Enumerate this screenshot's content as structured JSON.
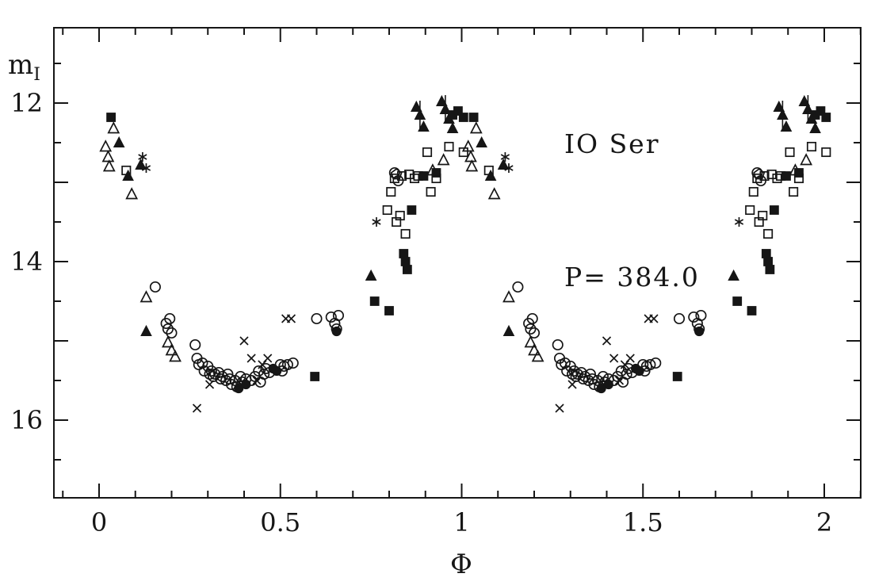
{
  "chart_data": {
    "type": "scatter",
    "title": "IO Ser",
    "subtitle": "P= 384.0",
    "xlabel": "Φ",
    "ylabel_main": "m",
    "ylabel_sub": "I",
    "x_range": [
      -0.125,
      2.102
    ],
    "y_range_mag": [
      11.05,
      16.98
    ],
    "y_inverted": true,
    "x_major_ticks": [
      0,
      0.5,
      1,
      1.5,
      2
    ],
    "x_tick_labels": [
      "0",
      "0.5",
      "1",
      "1.5",
      "2"
    ],
    "x_minor_step": 0.1,
    "y_major_step": 1,
    "y_minor_step": 0.5,
    "y_labeled_ticks": [
      12,
      14,
      16
    ],
    "y_tick_labels": [
      "12",
      "14",
      "16"
    ],
    "grid": false,
    "legend": "none",
    "phase_duplicated": true,
    "marker_color": "#161616",
    "series": [
      {
        "name": "open-circle",
        "marker": "circle-open",
        "points": [
          [
            0.155,
            14.32
          ],
          [
            0.185,
            14.78
          ],
          [
            0.19,
            14.85
          ],
          [
            0.195,
            14.72
          ],
          [
            0.2,
            14.9
          ],
          [
            0.265,
            15.05
          ],
          [
            0.27,
            15.22
          ],
          [
            0.275,
            15.3
          ],
          [
            0.285,
            15.28
          ],
          [
            0.29,
            15.38
          ],
          [
            0.3,
            15.32
          ],
          [
            0.305,
            15.42
          ],
          [
            0.31,
            15.38
          ],
          [
            0.315,
            15.45
          ],
          [
            0.32,
            15.42
          ],
          [
            0.33,
            15.4
          ],
          [
            0.335,
            15.48
          ],
          [
            0.34,
            15.45
          ],
          [
            0.35,
            15.5
          ],
          [
            0.355,
            15.42
          ],
          [
            0.36,
            15.48
          ],
          [
            0.365,
            15.55
          ],
          [
            0.375,
            15.5
          ],
          [
            0.38,
            15.58
          ],
          [
            0.39,
            15.45
          ],
          [
            0.395,
            15.52
          ],
          [
            0.405,
            15.48
          ],
          [
            0.42,
            15.5
          ],
          [
            0.43,
            15.45
          ],
          [
            0.44,
            15.38
          ],
          [
            0.445,
            15.52
          ],
          [
            0.455,
            15.42
          ],
          [
            0.46,
            15.35
          ],
          [
            0.47,
            15.4
          ],
          [
            0.5,
            15.3
          ],
          [
            0.505,
            15.38
          ],
          [
            0.51,
            15.32
          ],
          [
            0.52,
            15.3
          ],
          [
            0.535,
            15.28
          ],
          [
            0.6,
            14.72
          ],
          [
            0.64,
            14.7
          ],
          [
            0.65,
            14.78
          ],
          [
            0.655,
            14.85
          ],
          [
            0.66,
            14.68
          ],
          [
            0.815,
            12.88
          ],
          [
            0.825,
            12.98
          ]
        ]
      },
      {
        "name": "filled-circle",
        "marker": "circle-filled",
        "points": [
          [
            0.385,
            15.6
          ],
          [
            0.405,
            15.55
          ],
          [
            0.48,
            15.35
          ],
          [
            0.49,
            15.38
          ],
          [
            0.655,
            14.88
          ]
        ]
      },
      {
        "name": "cross",
        "marker": "cross",
        "points": [
          [
            0.27,
            15.85
          ],
          [
            0.305,
            15.55
          ],
          [
            0.4,
            15.0
          ],
          [
            0.42,
            15.22
          ],
          [
            0.435,
            15.5
          ],
          [
            0.45,
            15.3
          ],
          [
            0.465,
            15.22
          ],
          [
            0.515,
            14.72
          ],
          [
            0.53,
            14.72
          ]
        ]
      },
      {
        "name": "asterisk",
        "marker": "asterisk",
        "points": [
          [
            0.12,
            12.68
          ],
          [
            0.13,
            12.82
          ],
          [
            0.765,
            13.5
          ]
        ]
      },
      {
        "name": "open-triangle",
        "marker": "triangle-open",
        "points": [
          [
            0.018,
            12.55
          ],
          [
            0.025,
            12.68
          ],
          [
            0.028,
            12.8
          ],
          [
            0.04,
            12.32
          ],
          [
            0.09,
            13.15
          ],
          [
            0.13,
            14.45
          ],
          [
            0.19,
            15.02
          ],
          [
            0.2,
            15.12
          ],
          [
            0.21,
            15.2
          ],
          [
            0.92,
            12.85
          ],
          [
            0.95,
            12.72
          ]
        ]
      },
      {
        "name": "filled-triangle",
        "marker": "triangle-filled",
        "points": [
          [
            0.055,
            12.5
          ],
          [
            0.08,
            12.92
          ],
          [
            0.115,
            12.78
          ],
          [
            0.13,
            14.88
          ],
          [
            0.75,
            14.18
          ],
          [
            0.875,
            12.05
          ],
          [
            0.885,
            12.15,
            0.18
          ],
          [
            0.895,
            12.3
          ],
          [
            0.945,
            11.98
          ],
          [
            0.955,
            12.08,
            0.18
          ],
          [
            0.965,
            12.2
          ],
          [
            0.975,
            12.32
          ]
        ]
      },
      {
        "name": "open-square",
        "marker": "square-open",
        "points": [
          [
            0.075,
            12.85
          ],
          [
            0.795,
            13.35
          ],
          [
            0.805,
            13.12
          ],
          [
            0.815,
            12.95
          ],
          [
            0.82,
            13.5
          ],
          [
            0.83,
            13.42
          ],
          [
            0.835,
            12.92
          ],
          [
            0.845,
            13.65
          ],
          [
            0.855,
            12.9
          ],
          [
            0.87,
            12.95
          ],
          [
            0.88,
            12.92
          ],
          [
            0.905,
            12.62
          ],
          [
            0.915,
            13.12
          ],
          [
            0.93,
            12.95
          ],
          [
            0.965,
            12.55
          ],
          [
            1.005,
            12.62
          ]
        ]
      },
      {
        "name": "filled-square",
        "marker": "square-filled",
        "points": [
          [
            0.033,
            12.18
          ],
          [
            0.595,
            15.45
          ],
          [
            0.76,
            14.5
          ],
          [
            0.8,
            14.62
          ],
          [
            0.84,
            13.9
          ],
          [
            0.845,
            14.0
          ],
          [
            0.85,
            14.1
          ],
          [
            0.862,
            13.35
          ],
          [
            0.895,
            12.92
          ],
          [
            0.93,
            12.88
          ],
          [
            0.975,
            12.15
          ],
          [
            0.99,
            12.1
          ],
          [
            1.005,
            12.18
          ]
        ]
      },
      {
        "name": "open-pentagon",
        "marker": "pentagon-open",
        "points": [
          [
            0.82,
            12.9
          ]
        ]
      }
    ]
  }
}
